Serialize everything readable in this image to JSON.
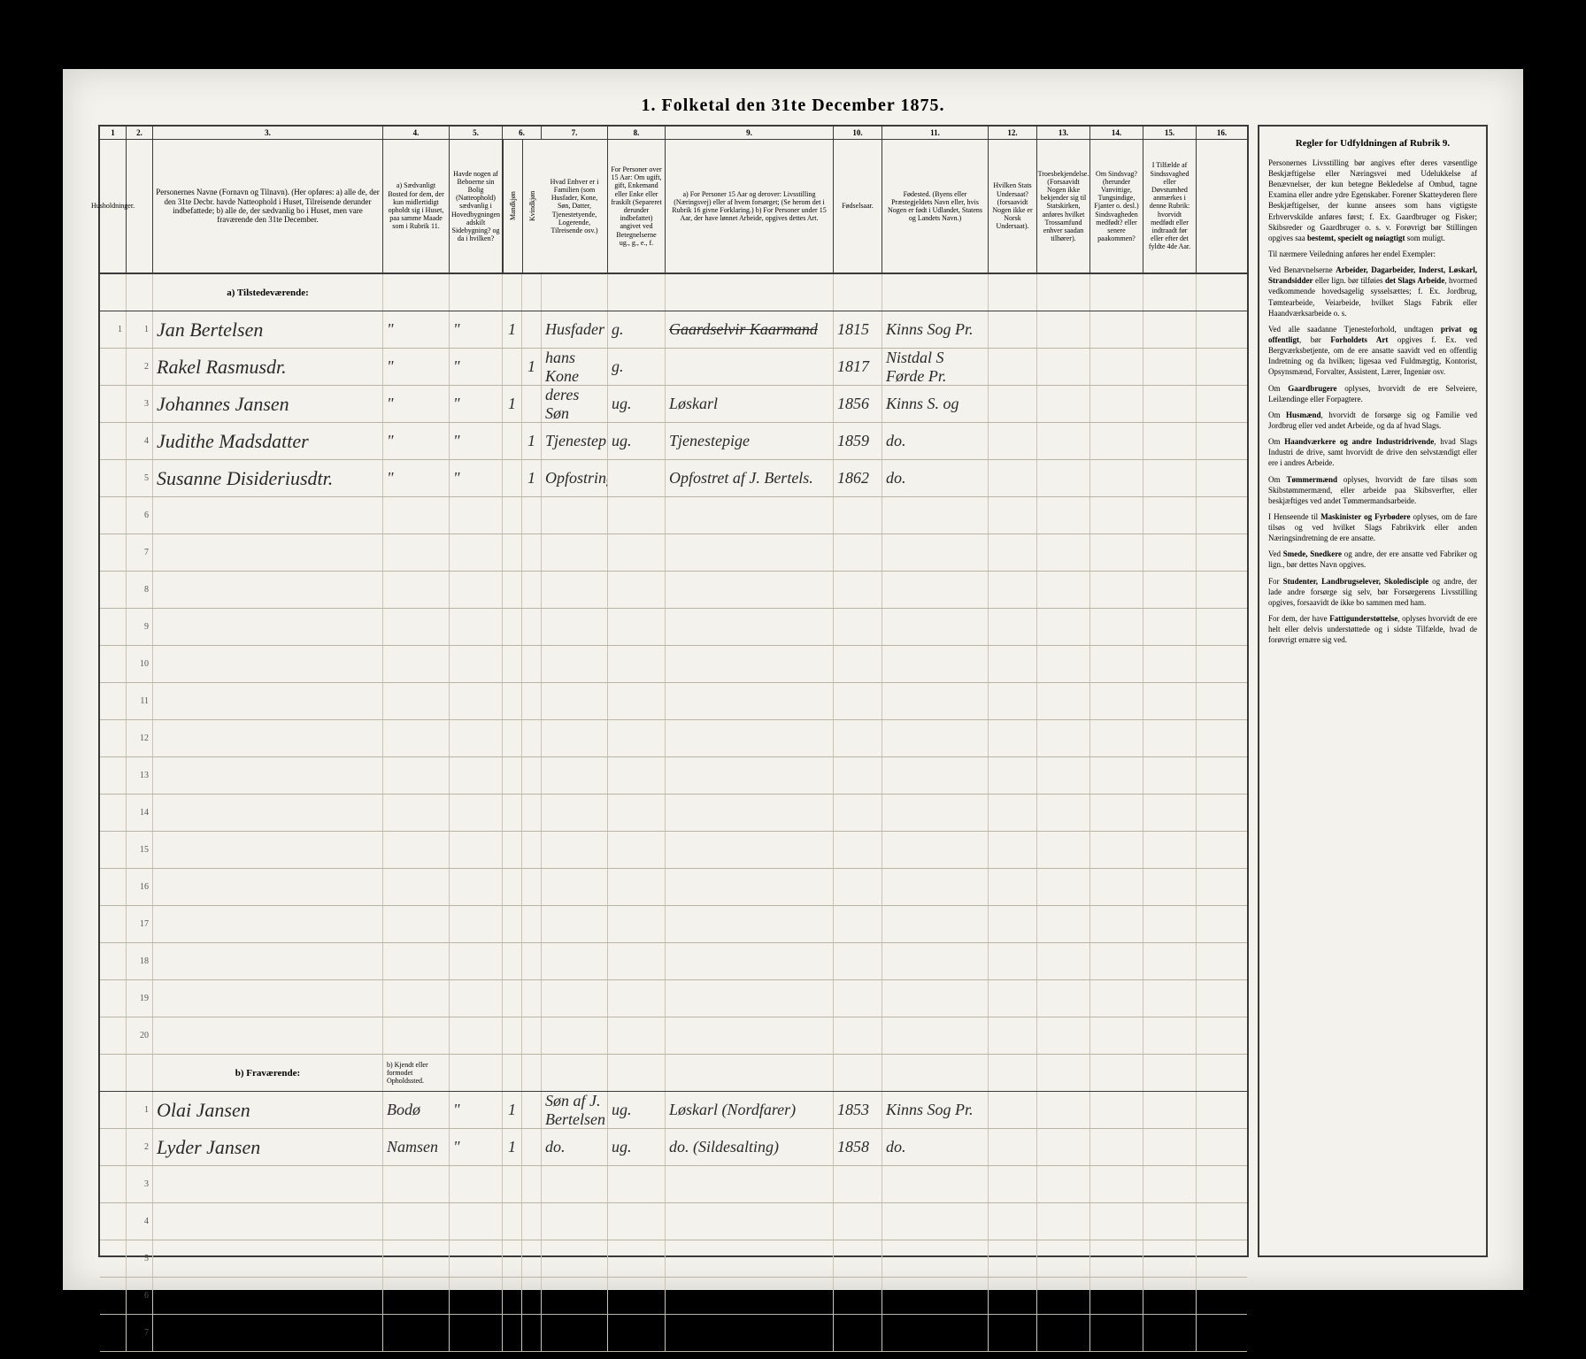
{
  "title": "1. Folketal den 31te December 1875.",
  "columns": {
    "nums": [
      "1",
      "2.",
      "3.",
      "4.",
      "5.",
      "6.",
      "7.",
      "8.",
      "9.",
      "10.",
      "11.",
      "12.",
      "13.",
      "14.",
      "15.",
      "16."
    ],
    "h1": "Husholdninger.",
    "h2": "",
    "h3": "Personernes Navne (Fornavn og Tilnavn).\n(Her opføres:\na) alle de, der den 31te Decbr. havde Natteophold i Huset, Tilreisende derunder indbefattede;\nb) alle de, der sædvanlig bo i Huset, men vare fraværende den 31te December.",
    "h4": "a) Sædvanligt Bosted for dem, der kun midlertidigt opholdt sig i Huset, paa samme Maade som i Rubrik 11.",
    "h5": "Havde nogen af Beboerne sin Bolig (Natteophold) sædvanlig i Hovedbygningen adskilt Sidebygning? og da i hvilken?",
    "h6": "Kjøn. Et eller Et etstreg!",
    "h6a": "Mandkjøn",
    "h6b": "Kvindkjøn",
    "h7": "Hvad Enhver er i Familien (som Husfader, Kone, Søn, Datter, Tjenestetyende, Logerende, Tilreisende osv.)",
    "h8": "For Personer over 15 Aar: Om ugift, gift, Enkemand eller Enke eller fraskilt (Separeret derunder indbefattet) angivet ved Betegnelserne ug., g., e., f.",
    "h9": "a) For Personer 15 Aar og derover: Livsstilling (Næringsvej) eller af hvem forsørget; (Se herom det i Rubrik 16 givne Forklaring.)\nb) For Personer under 15 Aar, der have lønnet Arbeide, opgives dettes Art.",
    "h10": "Fødselsaar.",
    "h11": "Fødested. (Byens eller Præstegjeldets Navn eller, hvis Nogen er født i Udlandet, Statens og Landets Navn.)",
    "h12": "Hvilken Stats Undersaat? (forsaavidt Nogen ikke er Norsk Undersaat).",
    "h13": "Troesbekjendelse. (Forsaavidt Nogen ikke bekjender sig til Statskirken, anføres hvilket Trossamfund enhver saadan tilhører).",
    "h14": "Om Sindsvag? (herunder Vanvittige, Tungsindige, Fjanter o. desl.) Sindsvagheden medfødt? eller senere paakommen?",
    "h15": "I Tilfælde af Sindssvaghed eller Døvstumhed anmærkes i denne Rubrik: hvorvidt medfødt eller indtraadt før eller efter det fyldte 4de Aar.",
    "h16": ""
  },
  "side": {
    "title": "Regler for Udfyldningen af Rubrik 9.",
    "paras": [
      "Personernes Livsstilling bør angives efter deres væsentlige Beskjæftigelse eller Næringsvei med Udelukkelse af Benævnelser, der kun betegne Bekledelse af Ombud, tagne Examina eller andre ydre Egenskaber. Forener Skatteyderen flere Beskjæftigelser, der kunne ansees som hans vigtigste Erhvervskilde anføres først; f. Ex. Gaardbruger og Fisker; Skibsreder og Gaardbruger o. s. v. Forøvrigt bør Stillingen opgives saa <b>bestemt, specielt og nøiagtigt</b> som muligt.",
      "Til nærmere Veiledning anføres her endel Exempler:",
      "Ved Benævnelserne <b>Arbeider, Dagarbeider, Inderst, Løskarl, Strandsidder</b> eller lign. bør tilføies <b>det Slags Arbeide</b>, hvormed vedkommende hovedsagelig sysselsættes; f. Ex. Jordbrug, Tømtearbeide, Veiarbeide, hvilket Slags Fabrik eller Haandværksarbeide o. s.",
      "Ved alle saadanne Tjenesteforhold, undtagen <b>privat og offentligt</b>, bør <b>Forholdets Art</b> opgives f. Ex. ved Bergværksbetjente, om de ere ansatte saavidt ved en offentlig Indretning og da hvilken; ligesaa ved Fuldmægtig, Kontorist, Opsynsmænd, Forvalter, Assistent, Lærer, Ingeniør osv.",
      "Om <b>Gaardbrugere</b> oplyses, hvorvidt de ere Selveiere, Leilændinge eller Forpagtere.",
      "Om <b>Husmænd</b>, hvorvidt de forsørge sig og Familie ved Jordbrug eller ved andet Arbeide, og da af hvad Slags.",
      "Om <b>Haandværkere og andre Industridrivende</b>, hvad Slags Industri de drive, samt hvorvidt de drive den selvstændigt eller ere i andres Arbeide.",
      "Om <b>Tømmermænd</b> oplyses, hvorvidt de fare tilsøs som Skibstømmermænd, eller arbeide paa Skibsverfter, eller beskjæftiges ved andet Tømmermandsarbeide.",
      "I Henseende til <b>Maskinister og Fyrbødere</b> oplyses, om de fare tilsøs og ved hvilket Slags Fabrikvirk eller anden Næringsindretning de ere ansatte.",
      "Ved <b>Smede, Snedkere</b> og andre, der ere ansatte ved Fabriker og lign., bør dettes Navn opgives.",
      "For <b>Studenter, Landbrugselever, Skoledisciple</b> og andre, der lade andre forsørge sig selv, bør Forsørgerens Livsstilling opgives, forsaavidt de ikke bo sammen med ham.",
      "For dem, der have <b>Fattigunderstøttelse</b>, oplyses hvorvidt de ere helt eller delvis understøttede og i sidste Tilfælde, hvad de forøvrigt ernære sig ved."
    ]
  },
  "section_a": "a) Tilstedeværende:",
  "section_b": "b) Fraværende:",
  "section_b_col4": "b) Kjendt eller formodet Opholdssted.",
  "rows_a": [
    {
      "n1": "1",
      "n2": "1",
      "name": "Jan Bertelsen",
      "c4": "\"",
      "c5": "\"",
      "c6a": "1",
      "c6b": "",
      "c7": "Husfader",
      "c8": "g.",
      "c9": "Gaardselvir  Kaarmand",
      "c9_struck": true,
      "c10": "1815",
      "c11": "Kinns Sog Pr."
    },
    {
      "n1": "",
      "n2": "2",
      "name": "Rakel Rasmusdr.",
      "c4": "\"",
      "c5": "\"",
      "c6a": "",
      "c6b": "1",
      "c7": "hans Kone",
      "c8": "g.",
      "c9": "",
      "c10": "1817",
      "c11": "Nistdal S Førde Pr."
    },
    {
      "n1": "",
      "n2": "3",
      "name": "Johannes Jansen",
      "c4": "\"",
      "c5": "\"",
      "c6a": "1",
      "c6b": "",
      "c7": "deres Søn",
      "c8": "ug.",
      "c9": "Løskarl",
      "c10": "1856",
      "c11": "Kinns S. og"
    },
    {
      "n1": "",
      "n2": "4",
      "name": "Judithe Madsdatter",
      "c4": "\"",
      "c5": "\"",
      "c6a": "",
      "c6b": "1",
      "c7": "Tjenestepige",
      "c8": "ug.",
      "c9": "Tjenestepige",
      "c10": "1859",
      "c11": "do."
    },
    {
      "n1": "",
      "n2": "5",
      "name": "Susanne Disideriusdtr.",
      "c4": "\"",
      "c5": "\"",
      "c6a": "",
      "c6b": "1",
      "c7": "Opfostringsbarn",
      "c8": "",
      "c9": "Opfostret af J. Bertels.",
      "c10": "1862",
      "c11": "do."
    }
  ],
  "rows_b": [
    {
      "n1": "",
      "n2": "1",
      "name": "Olai Jansen",
      "c4": "Bodø",
      "c5": "\"",
      "c6a": "1",
      "c6b": "",
      "c7": "Søn af J. Bertelsen",
      "c8": "ug.",
      "c9": "Løskarl (Nordfarer)",
      "c10": "1853",
      "c11": "Kinns Sog Pr."
    },
    {
      "n1": "",
      "n2": "2",
      "name": "Lyder Jansen",
      "c4": "Namsen",
      "c5": "\"",
      "c6a": "1",
      "c6b": "",
      "c7": "do.",
      "c8": "ug.",
      "c9": "do. (Sildesalting)",
      "c10": "1858",
      "c11": "do."
    }
  ],
  "blank_rows_a": 15,
  "blank_rows_b": 5
}
